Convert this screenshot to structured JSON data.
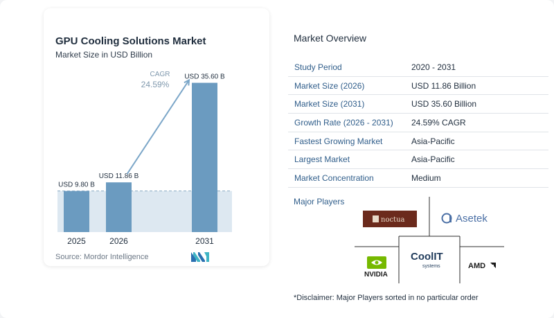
{
  "chart_data": {
    "type": "bar",
    "title": "GPU Cooling Solutions Market",
    "subtitle": "Market Size in USD Billion",
    "categories": [
      "2025",
      "2026",
      "2031"
    ],
    "values": [
      9.8,
      11.86,
      35.6
    ],
    "data_labels": [
      "USD 9.80 B",
      "USD 11.86 B",
      "USD 35.60 B"
    ],
    "cagr_label": "CAGR",
    "cagr_value": "24.59%",
    "ylim": [
      0,
      38
    ],
    "bar_color": "#6b9bc0",
    "bar_color_light": "#8fb6d3",
    "band_color": "#dde8f1",
    "arrow_color": "#7ba6c8"
  },
  "source": "Source:  Mordor Intelligence",
  "overview": {
    "title": "Market Overview",
    "rows": [
      {
        "label": "Study Period",
        "value": "2020 - 2031"
      },
      {
        "label": "Market Size (2026)",
        "value": "USD 11.86 Billion"
      },
      {
        "label": "Market Size (2031)",
        "value": "USD 35.60 Billion"
      },
      {
        "label": "Growth Rate (2026 - 2031)",
        "value": "24.59% CAGR"
      },
      {
        "label": "Fastest Growing Market",
        "value": "Asia-Pacific"
      },
      {
        "label": "Largest Market",
        "value": "Asia-Pacific"
      },
      {
        "label": "Market Concentration",
        "value": "Medium"
      }
    ]
  },
  "players": {
    "title": "Major Players",
    "logos": {
      "noctua": "noctua",
      "asetek": "Asetek",
      "nvidia": "NVIDIA",
      "coolit": "CoolIT",
      "coolit_sub": "systems",
      "amd": "AMD"
    }
  },
  "disclaimer": "*Disclaimer: Major Players sorted in no particular order"
}
